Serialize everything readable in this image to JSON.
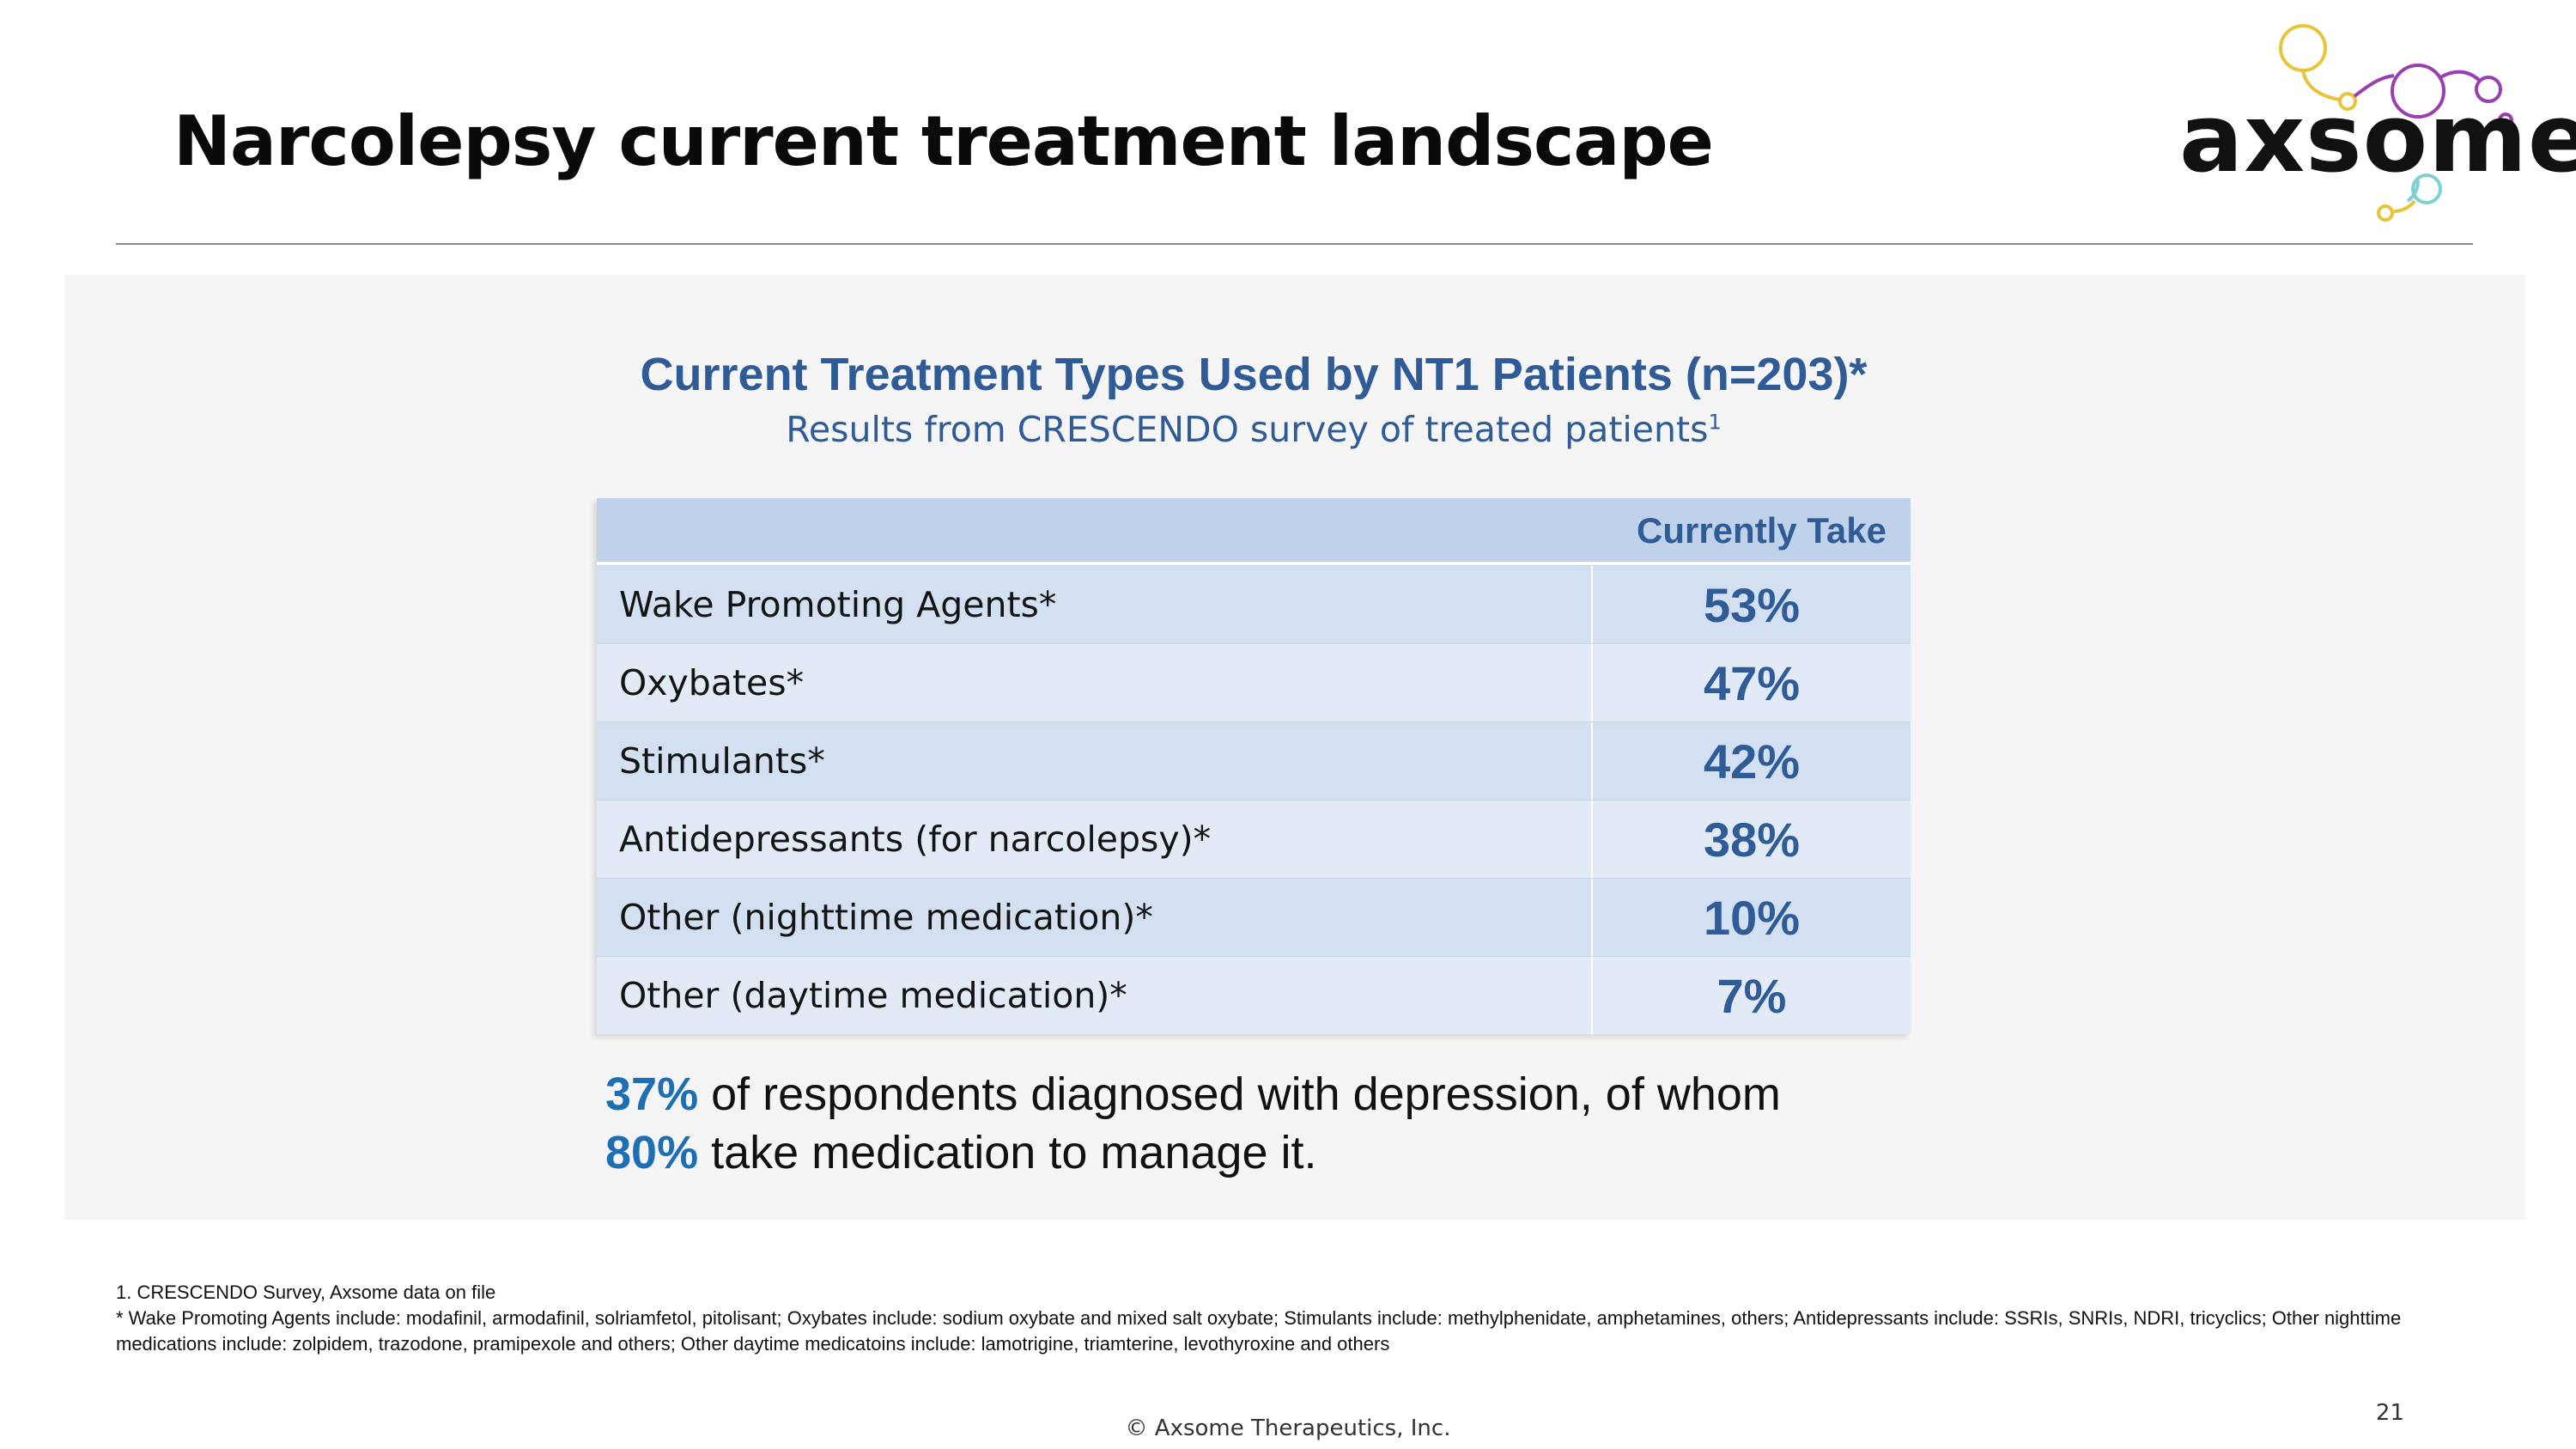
{
  "slide": {
    "title": "Narcolepsy current treatment landscape",
    "logo_text": "axsome",
    "page_number": "21",
    "copyright": "© Axsome Therapeutics, Inc."
  },
  "chart": {
    "title": "Current Treatment Types Used by NT1 Patients (n=203)*",
    "subtitle": "Results from CRESCENDO survey of treated patients",
    "subtitle_ref": "1",
    "column_header": "Currently Take"
  },
  "chart_data": {
    "type": "table",
    "title": "Current Treatment Types Used by NT1 Patients (n=203)*",
    "columns": [
      "",
      "Currently Take"
    ],
    "rows": [
      {
        "label": "Wake Promoting Agents*",
        "value": "53%"
      },
      {
        "label": "Oxybates*",
        "value": "47%"
      },
      {
        "label": "Stimulants*",
        "value": "42%"
      },
      {
        "label": "Antidepressants (for narcolepsy)*",
        "value": "38%"
      },
      {
        "label": "Other (nighttime medication)*",
        "value": "10%"
      },
      {
        "label": "Other (daytime medication)*",
        "value": "7%"
      }
    ]
  },
  "callout": {
    "stat1": "37%",
    "text1": " of respondents diagnosed with depression, of whom",
    "stat2": "80%",
    "text2": " take medication to manage it."
  },
  "footnotes": {
    "ref1": "1. CRESCENDO Survey, Axsome data on file",
    "ref2": "* Wake Promoting Agents include: modafinil, armodafinil, solriamfetol, pitolisant; Oxybates include: sodium oxybate and mixed salt oxybate; Stimulants include: methylphenidate, amphetamines, others; Antidepressants include: SSRIs, SNRIs, NDRI, tricyclics; Other nighttime medications include: zolpidem, trazodone, pramipexole and others; Other daytime medicatoins include: lamotrigine, triamterine, levothyroxine and others"
  },
  "colors": {
    "accent": "#2f5b96",
    "highlight": "#1c6fb3",
    "header_fill": "#c0d1ea",
    "row_fill_a": "#d3e0f2",
    "row_fill_b": "#e2eaf6"
  }
}
